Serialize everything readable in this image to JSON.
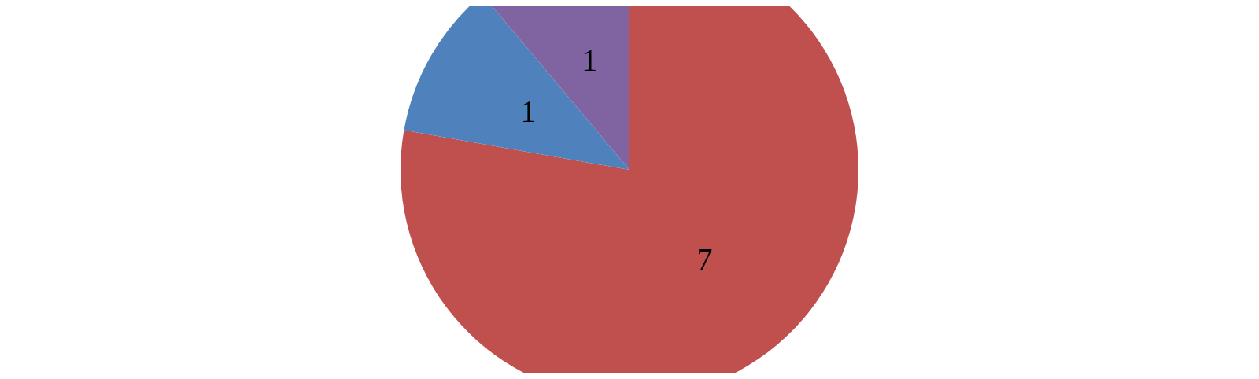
{
  "chart_data": {
    "type": "pie",
    "categories": [
      null,
      null,
      null
    ],
    "values": [
      7,
      1,
      1
    ],
    "colors": [
      "#c0504d",
      "#4f81bd",
      "#8064a2"
    ],
    "data_labels": true
  }
}
